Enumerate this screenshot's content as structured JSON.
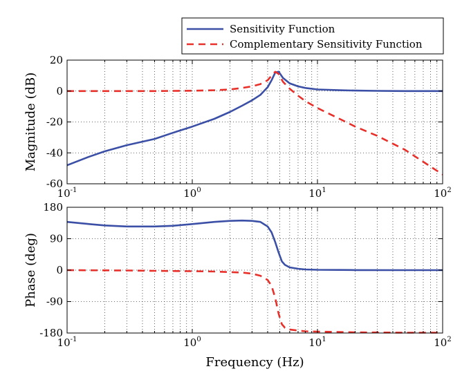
{
  "chart_data": [
    {
      "type": "line",
      "ylabel": "Magnitude (dB)",
      "xlabel": "",
      "xscale": "log",
      "xlim": [
        0.1,
        100
      ],
      "ylim": [
        -60,
        20
      ],
      "grid": true,
      "xticks": [
        0.1,
        1,
        10,
        100
      ],
      "yticks": [
        -60,
        -40,
        -20,
        0,
        20
      ],
      "legend": {
        "placement": "top-right, above plot",
        "entries": [
          "Sensitivity Function",
          "Complementary Sensitivity Function"
        ]
      },
      "series": [
        {
          "name": "Sensitivity Function",
          "color": "#3a4fa5",
          "style": "solid",
          "x": [
            0.1,
            0.15,
            0.2,
            0.3,
            0.5,
            0.7,
            1,
            1.5,
            2,
            2.5,
            3,
            3.5,
            4,
            4.3,
            4.6,
            4.9,
            5.3,
            6,
            7,
            8,
            10,
            15,
            20,
            30,
            50,
            100
          ],
          "y": [
            -48,
            -42.5,
            -39,
            -35,
            -31,
            -27,
            -23,
            -18,
            -13.5,
            -9.5,
            -6,
            -2.5,
            2.5,
            7,
            12,
            12.5,
            8.5,
            5,
            3,
            2,
            1,
            0.5,
            0.3,
            0.1,
            0,
            0
          ]
        },
        {
          "name": "Complementary Sensitivity Function",
          "color": "#e8302b",
          "style": "dashed",
          "x": [
            0.1,
            0.3,
            0.5,
            1,
            1.5,
            2,
            2.5,
            3,
            3.5,
            4,
            4.3,
            4.6,
            4.9,
            5.3,
            6,
            7,
            8,
            10,
            15,
            20,
            30,
            50,
            100
          ],
          "y": [
            0,
            0,
            0,
            0.2,
            0.5,
            1,
            2,
            3,
            4.5,
            7,
            10,
            12.5,
            11,
            6,
            1.5,
            -3,
            -6.5,
            -11,
            -18,
            -23,
            -29,
            -38,
            -54
          ]
        }
      ]
    },
    {
      "type": "line",
      "ylabel": "Phase (deg)",
      "xlabel": "Frequency (Hz)",
      "xscale": "log",
      "xlim": [
        0.1,
        100
      ],
      "ylim": [
        -180,
        180
      ],
      "grid": true,
      "xticks": [
        0.1,
        1,
        10,
        100
      ],
      "yticks": [
        -180,
        -90,
        0,
        90,
        180
      ],
      "series": [
        {
          "name": "Sensitivity Function",
          "color": "#3a4fa5",
          "style": "solid",
          "x": [
            0.1,
            0.15,
            0.2,
            0.3,
            0.5,
            0.7,
            1,
            1.5,
            2,
            2.5,
            3,
            3.5,
            4,
            4.3,
            4.6,
            4.9,
            5.2,
            5.5,
            6,
            7,
            8,
            10,
            15,
            20,
            50,
            100
          ],
          "y": [
            138,
            132,
            128,
            125,
            125,
            127,
            132,
            138,
            141,
            142,
            141,
            138,
            125,
            108,
            80,
            50,
            25,
            15,
            8,
            4,
            2,
            1,
            0.5,
            0.2,
            0,
            0
          ]
        },
        {
          "name": "Complementary Sensitivity Function",
          "color": "#e8302b",
          "style": "dashed",
          "x": [
            0.1,
            0.3,
            0.5,
            1,
            1.5,
            2,
            2.5,
            3,
            3.5,
            4,
            4.3,
            4.6,
            4.9,
            5.2,
            5.5,
            6,
            7,
            8,
            10,
            15,
            20,
            50,
            100
          ],
          "y": [
            0,
            -1,
            -2,
            -3,
            -4,
            -5.5,
            -7,
            -10,
            -16,
            -28,
            -45,
            -80,
            -125,
            -155,
            -165,
            -170,
            -173,
            -175,
            -176,
            -177,
            -178,
            -179,
            -179
          ]
        }
      ]
    }
  ]
}
